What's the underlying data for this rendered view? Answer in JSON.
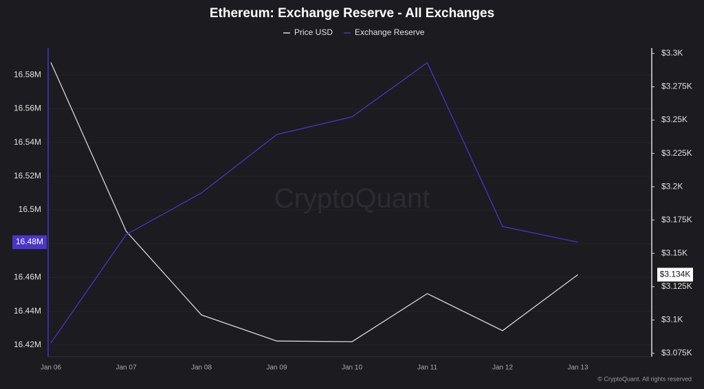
{
  "chart_data": {
    "type": "line",
    "title": "Ethereum: Exchange Reserve - All Exchanges",
    "watermark": "CryptoQuant",
    "footer": "© CryptoQuant. All rights reserved",
    "categories": [
      "Jan 06",
      "Jan 07",
      "Jan 08",
      "Jan 09",
      "Jan 10",
      "Jan 11",
      "Jan 12",
      "Jan 13"
    ],
    "series": [
      {
        "name": "Price USD",
        "color": "#d9d9d9",
        "axis": "y2",
        "values": [
          3293.3,
          3166.6,
          3103.8,
          3084.2,
          3083.7,
          3119.8,
          3092,
          3134
        ],
        "last_label": "$3.134K"
      },
      {
        "name": "Exchange Reserve",
        "color": "#4a35c9",
        "values": [
          16421200,
          16485400,
          16510100,
          16544700,
          16555200,
          16587300,
          16490200,
          16480900
        ],
        "last_label": "16.48M"
      }
    ],
    "ylim": [
      16413000,
      16596000
    ],
    "yticks": [
      {
        "value": 16420000,
        "label": "16.42M"
      },
      {
        "value": 16440000,
        "label": "16.44M"
      },
      {
        "value": 16460000,
        "label": "16.46M"
      },
      {
        "value": 16480000,
        "label": "16.48M"
      },
      {
        "value": 16500000,
        "label": "16.5M"
      },
      {
        "value": 16520000,
        "label": "16.52M"
      },
      {
        "value": 16540000,
        "label": "16.54M"
      },
      {
        "value": 16560000,
        "label": "16.56M"
      },
      {
        "value": 16580000,
        "label": "16.58M"
      }
    ],
    "y2lim": [
      3072.4,
      3304.1
    ],
    "y2ticks": [
      {
        "value": 3075,
        "label": "$3.075K"
      },
      {
        "value": 3100,
        "label": "$3.1K"
      },
      {
        "value": 3125,
        "label": "$3.125K"
      },
      {
        "value": 3150,
        "label": "$3.15K"
      },
      {
        "value": 3175,
        "label": "$3.175K"
      },
      {
        "value": 3200,
        "label": "$3.2K"
      },
      {
        "value": 3225,
        "label": "$3.225K"
      },
      {
        "value": 3250,
        "label": "$3.25K"
      },
      {
        "value": 3275,
        "label": "$3.275K"
      },
      {
        "value": 3300,
        "label": "$3.3K"
      }
    ],
    "grid": true
  }
}
